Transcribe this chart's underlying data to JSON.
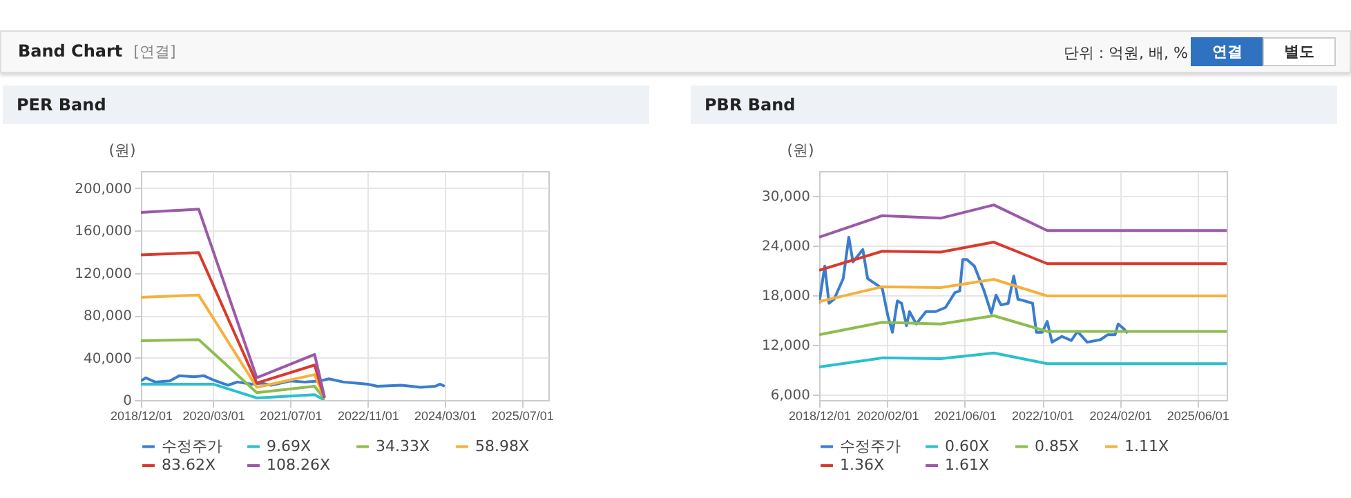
{
  "chart_data": [
    {
      "type": "other",
      "title": "Band Chart",
      "annotations": [
        "[연결]",
        "단위 : 억원, 배, %",
        "연결",
        "별도"
      ]
    },
    {
      "type": "line",
      "title": "PER Band",
      "ylabel": "(원)",
      "xlim": [
        "2018-12-01",
        "2025-12-15"
      ],
      "ylim": [
        0,
        216000
      ],
      "xticks": [
        {
          "value": "2018-12-01",
          "label": "2018/12/01"
        },
        {
          "value": "2020-03-01",
          "label": "2020/03/01"
        },
        {
          "value": "2021-07-01",
          "label": "2021/07/01"
        },
        {
          "value": "2022-11-01",
          "label": "2022/11/01"
        },
        {
          "value": "2024-03-01",
          "label": "2024/03/01"
        },
        {
          "value": "2025-07-01",
          "label": "2025/07/01"
        }
      ],
      "yticks": [
        0,
        {
          "value": 40000,
          "label": "40,000"
        },
        {
          "value": 80000,
          "label": "80,000"
        },
        {
          "value": 120000,
          "label": "120,000"
        },
        {
          "value": 160000,
          "label": "160,000"
        },
        {
          "value": 200000,
          "label": "200,000"
        }
      ],
      "grid": true,
      "legend": "bottom",
      "series": [
        {
          "name": "수정주가",
          "color": "#3a7dd0",
          "x": [
            "2018-12-01",
            "2019-01-01",
            "2019-03-01",
            "2019-06-01",
            "2019-08-01",
            "2019-11-01",
            "2020-01-01",
            "2020-03-01",
            "2020-06-01",
            "2020-08-01",
            "2020-11-01",
            "2021-01-01",
            "2021-03-01",
            "2021-07-01",
            "2021-10-01",
            "2022-01-01",
            "2022-03-01",
            "2022-06-01",
            "2022-11-01",
            "2023-01-01",
            "2023-06-01",
            "2023-10-01",
            "2024-01-01",
            "2024-02-01",
            "2024-03-01"
          ],
          "values": [
            18000,
            21000,
            17000,
            18000,
            23000,
            22000,
            23000,
            19000,
            14000,
            17000,
            15000,
            16000,
            14000,
            18000,
            17000,
            18000,
            20000,
            17000,
            15000,
            13000,
            14000,
            12000,
            13000,
            15000,
            13000
          ]
        },
        {
          "name": "9.69X",
          "color": "#2bbfcf",
          "x": [
            "2018-12-01",
            "2020-03-01",
            "2020-12-01",
            "2021-12-01",
            "2022-02-01"
          ],
          "values": [
            15000,
            15000,
            2000,
            5000,
            0
          ]
        },
        {
          "name": "34.33X",
          "color": "#8dbd4e",
          "x": [
            "2018-12-01",
            "2019-12-01",
            "2020-12-01",
            "2021-12-01",
            "2022-02-01"
          ],
          "values": [
            56000,
            57000,
            7000,
            13000,
            1000
          ]
        },
        {
          "name": "58.98X",
          "color": "#f5b13c",
          "x": [
            "2018-12-01",
            "2019-12-01",
            "2020-12-01",
            "2021-12-01",
            "2022-02-01"
          ],
          "values": [
            97000,
            99000,
            12000,
            24000,
            2000
          ]
        },
        {
          "name": "83.62X",
          "color": "#d83a2e",
          "x": [
            "2018-12-01",
            "2019-12-01",
            "2020-12-01",
            "2021-12-01",
            "2022-02-01"
          ],
          "values": [
            137000,
            139000,
            16000,
            33000,
            2000
          ]
        },
        {
          "name": "108.26X",
          "color": "#9b59a8",
          "x": [
            "2018-12-01",
            "2019-12-01",
            "2020-12-01",
            "2021-12-01",
            "2022-02-01"
          ],
          "values": [
            177000,
            180000,
            21000,
            43000,
            3000
          ]
        }
      ]
    },
    {
      "type": "line",
      "title": "PBR Band",
      "ylabel": "(원)",
      "xlim": [
        "2018-12-01",
        "2025-12-01"
      ],
      "ylim": [
        5300,
        33000
      ],
      "xticks": [
        {
          "value": "2018-12-01",
          "label": "2018/12/01"
        },
        {
          "value": "2020-02-01",
          "label": "2020/02/01"
        },
        {
          "value": "2021-06-01",
          "label": "2021/06/01"
        },
        {
          "value": "2022-10-01",
          "label": "2022/10/01"
        },
        {
          "value": "2024-02-01",
          "label": "2024/02/01"
        },
        {
          "value": "2025-06-01",
          "label": "2025/06/01"
        }
      ],
      "yticks": [
        {
          "value": 6000,
          "label": "6,000"
        },
        {
          "value": 12000,
          "label": "12,000"
        },
        {
          "value": 18000,
          "label": "18,000"
        },
        {
          "value": 24000,
          "label": "24,000"
        },
        {
          "value": 30000,
          "label": "30,000"
        }
      ],
      "grid": true,
      "legend": "bottom",
      "series": [
        {
          "name": "수정주가",
          "color": "#3a7dd0",
          "x": [
            "2018-12-01",
            "2019-01-05",
            "2019-02-01",
            "2019-03-05",
            "2019-05-01",
            "2019-06-05",
            "2019-07-01",
            "2019-09-01",
            "2019-10-01",
            "2020-01-01",
            "2020-02-05",
            "2020-03-05",
            "2020-04-05",
            "2020-05-01",
            "2020-06-01",
            "2020-06-20",
            "2020-08-01",
            "2020-10-01",
            "2020-12-01",
            "2021-02-01",
            "2021-04-01",
            "2021-05-01",
            "2021-05-20",
            "2021-06-15",
            "2021-08-01",
            "2021-10-01",
            "2021-11-15",
            "2021-12-15",
            "2022-01-15",
            "2022-03-01",
            "2022-04-05",
            "2022-05-01",
            "2022-06-10",
            "2022-08-01",
            "2022-08-25",
            "2022-10-01",
            "2022-11-01",
            "2022-12-01",
            "2023-02-01",
            "2023-04-01",
            "2023-05-10",
            "2023-07-10",
            "2023-10-01",
            "2023-11-15",
            "2024-01-01",
            "2024-01-20",
            "2024-02-20",
            "2024-03-20"
          ],
          "values": [
            17000,
            21500,
            17000,
            17500,
            20000,
            25000,
            22000,
            23500,
            20000,
            18800,
            15500,
            13500,
            17300,
            17000,
            14300,
            16000,
            14500,
            16000,
            16000,
            16500,
            18300,
            18500,
            22300,
            22300,
            21500,
            18500,
            15800,
            18000,
            16800,
            17000,
            20300,
            17500,
            17300,
            17000,
            13500,
            13500,
            14800,
            12300,
            13000,
            12500,
            13600,
            12300,
            12600,
            13200,
            13200,
            14500,
            14000,
            13400
          ]
        },
        {
          "name": "0.60X",
          "color": "#2bbfcf",
          "x": [
            "2018-12-01",
            "2020-01-01",
            "2021-01-01",
            "2021-12-01",
            "2022-11-01",
            "2025-12-01"
          ],
          "values": [
            9300,
            10400,
            10300,
            11000,
            9700,
            9700
          ]
        },
        {
          "name": "0.85X",
          "color": "#8dbd4e",
          "x": [
            "2018-12-01",
            "2020-01-01",
            "2021-01-01",
            "2021-12-01",
            "2022-11-01",
            "2025-12-01"
          ],
          "values": [
            13200,
            14700,
            14500,
            15500,
            13600,
            13600
          ]
        },
        {
          "name": "1.11X",
          "color": "#f5b13c",
          "x": [
            "2018-12-01",
            "2020-01-01",
            "2021-01-01",
            "2021-12-01",
            "2022-11-01",
            "2025-12-01"
          ],
          "values": [
            17200,
            19000,
            18900,
            19900,
            17900,
            17900
          ]
        },
        {
          "name": "1.36X",
          "color": "#d83a2e",
          "x": [
            "2018-12-01",
            "2020-01-01",
            "2021-01-01",
            "2021-12-01",
            "2022-11-01",
            "2025-12-01"
          ],
          "values": [
            21000,
            23300,
            23200,
            24400,
            21800,
            21800
          ]
        },
        {
          "name": "1.61X",
          "color": "#9b59a8",
          "x": [
            "2018-12-01",
            "2020-01-01",
            "2021-01-01",
            "2021-12-01",
            "2022-11-01",
            "2025-12-01"
          ],
          "values": [
            25000,
            27600,
            27300,
            28900,
            25800,
            25800
          ]
        }
      ]
    }
  ]
}
